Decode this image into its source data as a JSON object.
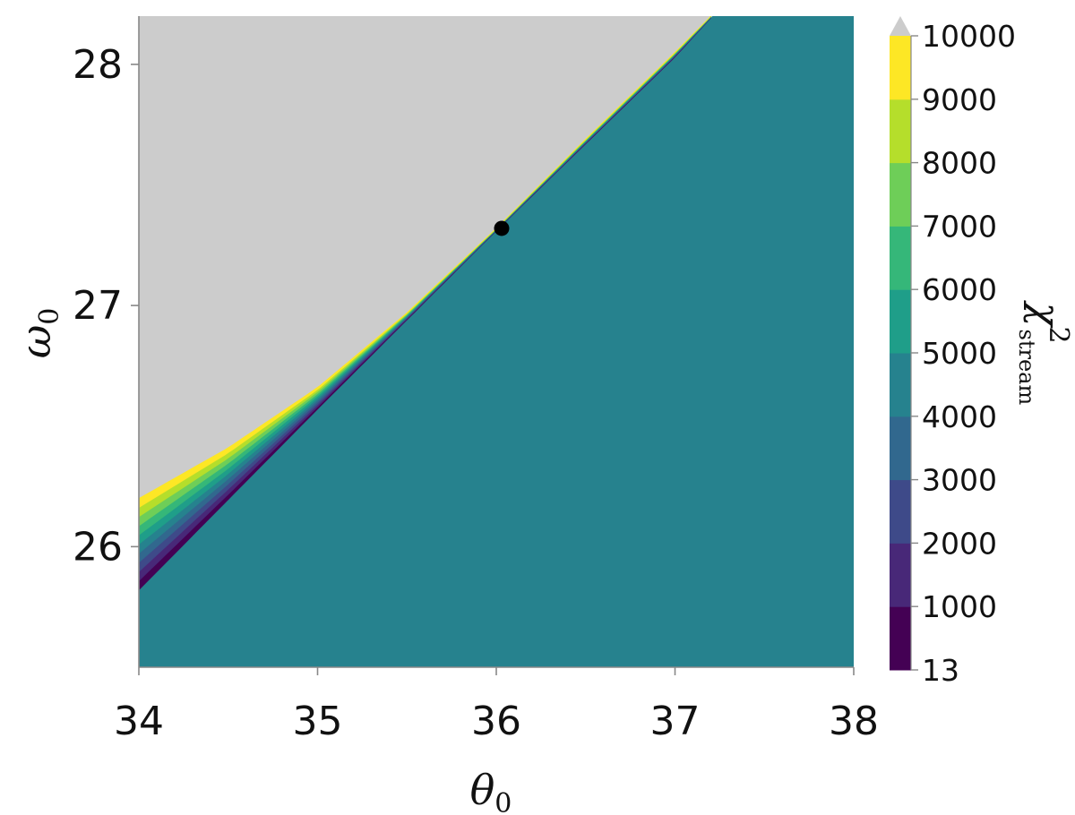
{
  "chart_data": {
    "type": "contourf",
    "xlabel": "θ",
    "xlabel_sub": "0",
    "ylabel": "ω",
    "ylabel_sub": "0",
    "xlim": [
      34,
      38
    ],
    "ylim": [
      25.5,
      28.2
    ],
    "x_ticks": [
      34,
      35,
      36,
      37,
      38
    ],
    "y_ticks": [
      26,
      27,
      28
    ],
    "x_tick_labels": [
      "34",
      "35",
      "36",
      "37",
      "38"
    ],
    "y_tick_labels": [
      "26",
      "27",
      "28"
    ],
    "background_color": "#cccccc",
    "plateau_value": 4500,
    "best_fit_point": {
      "x": 36.03,
      "y": 27.32
    },
    "valley_line": [
      {
        "x": 34.0,
        "y": 25.82
      },
      {
        "x": 35.0,
        "y": 26.57
      },
      {
        "x": 36.0,
        "y": 27.31
      },
      {
        "x": 37.0,
        "y": 28.03
      },
      {
        "x": 37.21,
        "y": 28.2
      }
    ],
    "contour_fan": [
      {
        "x": 34.0,
        "y": 26.2
      },
      {
        "x": 34.5,
        "y": 26.41
      },
      {
        "x": 35.0,
        "y": 26.66
      },
      {
        "x": 35.5,
        "y": 26.97
      },
      {
        "x": 36.0,
        "y": 27.32
      },
      {
        "x": 36.5,
        "y": 27.69
      },
      {
        "x": 37.0,
        "y": 28.05
      },
      {
        "x": 37.2,
        "y": 28.2
      }
    ],
    "colorbar": {
      "label": "χ",
      "label_sup": "2",
      "label_sub": "stream",
      "levels": [
        13,
        1000,
        2000,
        3000,
        4000,
        5000,
        6000,
        7000,
        8000,
        9000,
        10000
      ],
      "tick_labels": [
        "13",
        "1000",
        "2000",
        "3000",
        "4000",
        "5000",
        "6000",
        "7000",
        "8000",
        "9000",
        "10000"
      ],
      "colors": [
        "#440154",
        "#482878",
        "#3e4a89",
        "#31688e",
        "#26828e",
        "#1f9e89",
        "#35b779",
        "#6ece58",
        "#b5de2b",
        "#fde725"
      ],
      "extend_color": "#cccccc",
      "extend": "max"
    }
  }
}
